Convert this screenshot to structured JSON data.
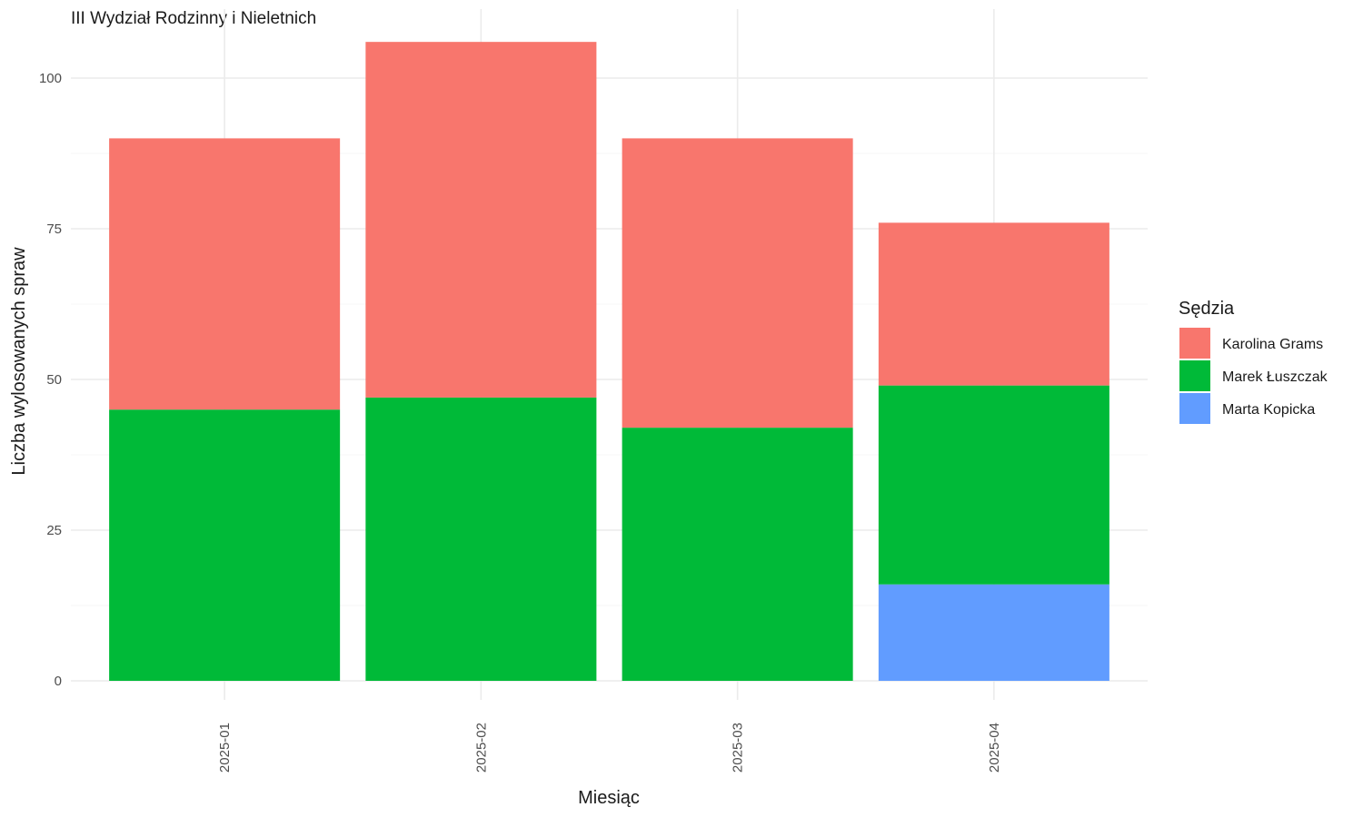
{
  "chart_data": {
    "type": "bar",
    "stacked": true,
    "title": "III Wydział Rodzinny i Nieletnich",
    "xlabel": "Miesiąc",
    "ylabel": "Liczba wylosowanych spraw",
    "categories": [
      "2025-01",
      "2025-02",
      "2025-03",
      "2025-04"
    ],
    "series": [
      {
        "name": "Karolina Grams",
        "color": "#F8766D",
        "values": [
          45,
          59,
          48,
          27
        ]
      },
      {
        "name": "Marek Łuszczak",
        "color": "#00BA38",
        "values": [
          45,
          47,
          42,
          33
        ]
      },
      {
        "name": "Marta Kopicka",
        "color": "#619CFF",
        "values": [
          0,
          0,
          0,
          16
        ]
      }
    ],
    "ylim": [
      0,
      110
    ],
    "yticks": [
      0,
      25,
      50,
      75,
      100
    ],
    "grid": true,
    "legend": {
      "title": "Sędzia",
      "position": "right"
    }
  }
}
